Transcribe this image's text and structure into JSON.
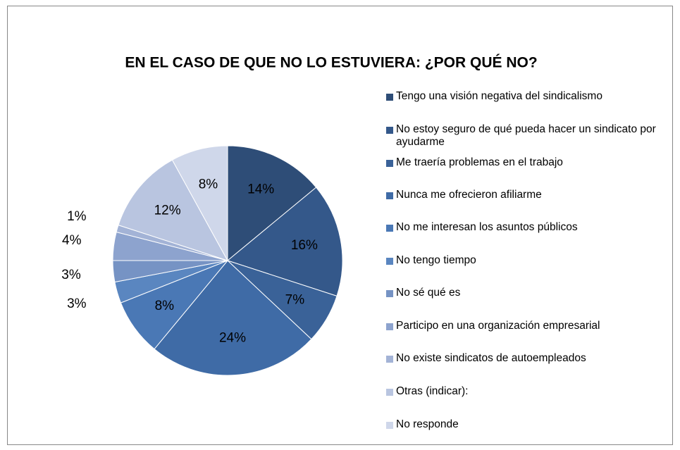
{
  "chart_data": {
    "type": "pie",
    "title": "EN EL CASO DE QUE NO LO ESTUVIERA: ¿POR QUÉ NO?",
    "categories": [
      "Tengo una visión negativa del sindicalismo",
      "No estoy seguro de qué pueda hacer un sindicato por ayudarme",
      "Me traería problemas en el trabajo",
      "Nunca me ofrecieron afiliarme",
      "No me interesan los asuntos públicos",
      "No tengo tiempo",
      "No sé qué es",
      "Participo en una organización empresarial",
      "No existe sindicatos de autoempleados",
      "Otras (indicar):",
      "No responde"
    ],
    "values": [
      14,
      16,
      7,
      24,
      8,
      3,
      3,
      4,
      1,
      12,
      8
    ],
    "value_labels": [
      "14%",
      "16%",
      "7%",
      "24%",
      "8%",
      "3%",
      "3%",
      "4%",
      "1%",
      "12%",
      "8%"
    ],
    "colors": [
      "#2e4d77",
      "#34588a",
      "#3a6298",
      "#3f6ba6",
      "#4a78b5",
      "#5a86c0",
      "#7693c4",
      "#8da3ce",
      "#a3b3d6",
      "#b9c5e0",
      "#cfd7ea"
    ],
    "legend": "right"
  }
}
